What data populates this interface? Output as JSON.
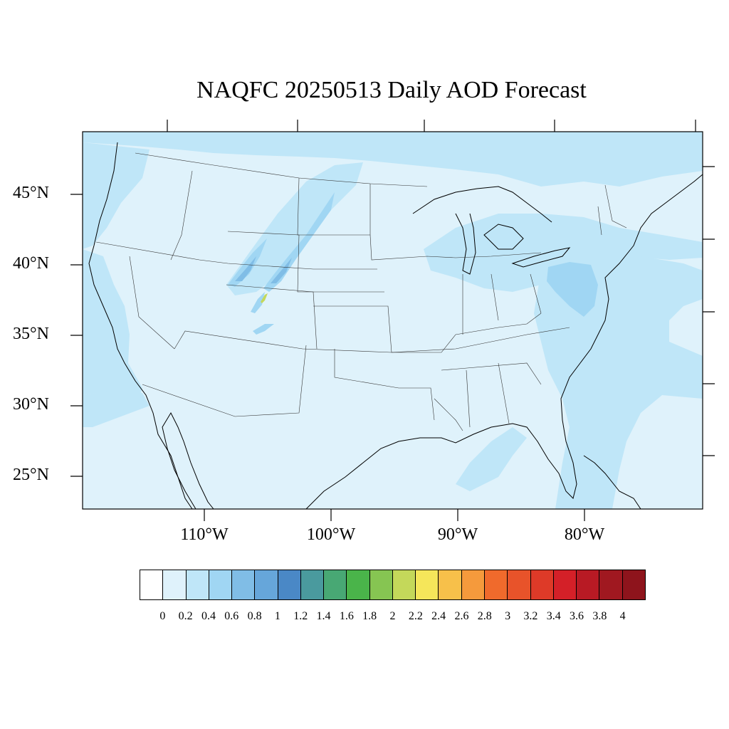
{
  "title": "NAQFC 20250513 Daily AOD Forecast",
  "lat_labels": [
    "45°N",
    "40°N",
    "35°N",
    "30°N",
    "25°N"
  ],
  "lon_labels": [
    "110°W",
    "100°W",
    "90°W",
    "80°W"
  ],
  "colorbar": {
    "labels": [
      "0",
      "0.2",
      "0.4",
      "0.6",
      "0.8",
      "1",
      "1.2",
      "1.4",
      "1.6",
      "1.8",
      "2",
      "2.2",
      "2.4",
      "2.6",
      "2.8",
      "3",
      "3.2",
      "3.4",
      "3.6",
      "3.8",
      "4"
    ],
    "colors": [
      "#ffffff",
      "#dff2fb",
      "#bfe6f8",
      "#a0d6f3",
      "#80bde6",
      "#66a6da",
      "#4a88c6",
      "#4a9a9e",
      "#48a874",
      "#4ab44a",
      "#86c552",
      "#c4d85a",
      "#f5e65a",
      "#f7c04a",
      "#f59a3c",
      "#f06a2c",
      "#e8532a",
      "#de3a28",
      "#d42028",
      "#b81a24",
      "#a01820",
      "#8e141c"
    ]
  },
  "map": {
    "background_color": "#dff2fb",
    "aod_0_2_0_4_color": "#bfe6f8",
    "aod_0_4_0_6_color": "#a0d6f3",
    "aod_0_6_0_8_color": "#80bde6",
    "smoke_plume_peak_color": "#c4d85a"
  }
}
